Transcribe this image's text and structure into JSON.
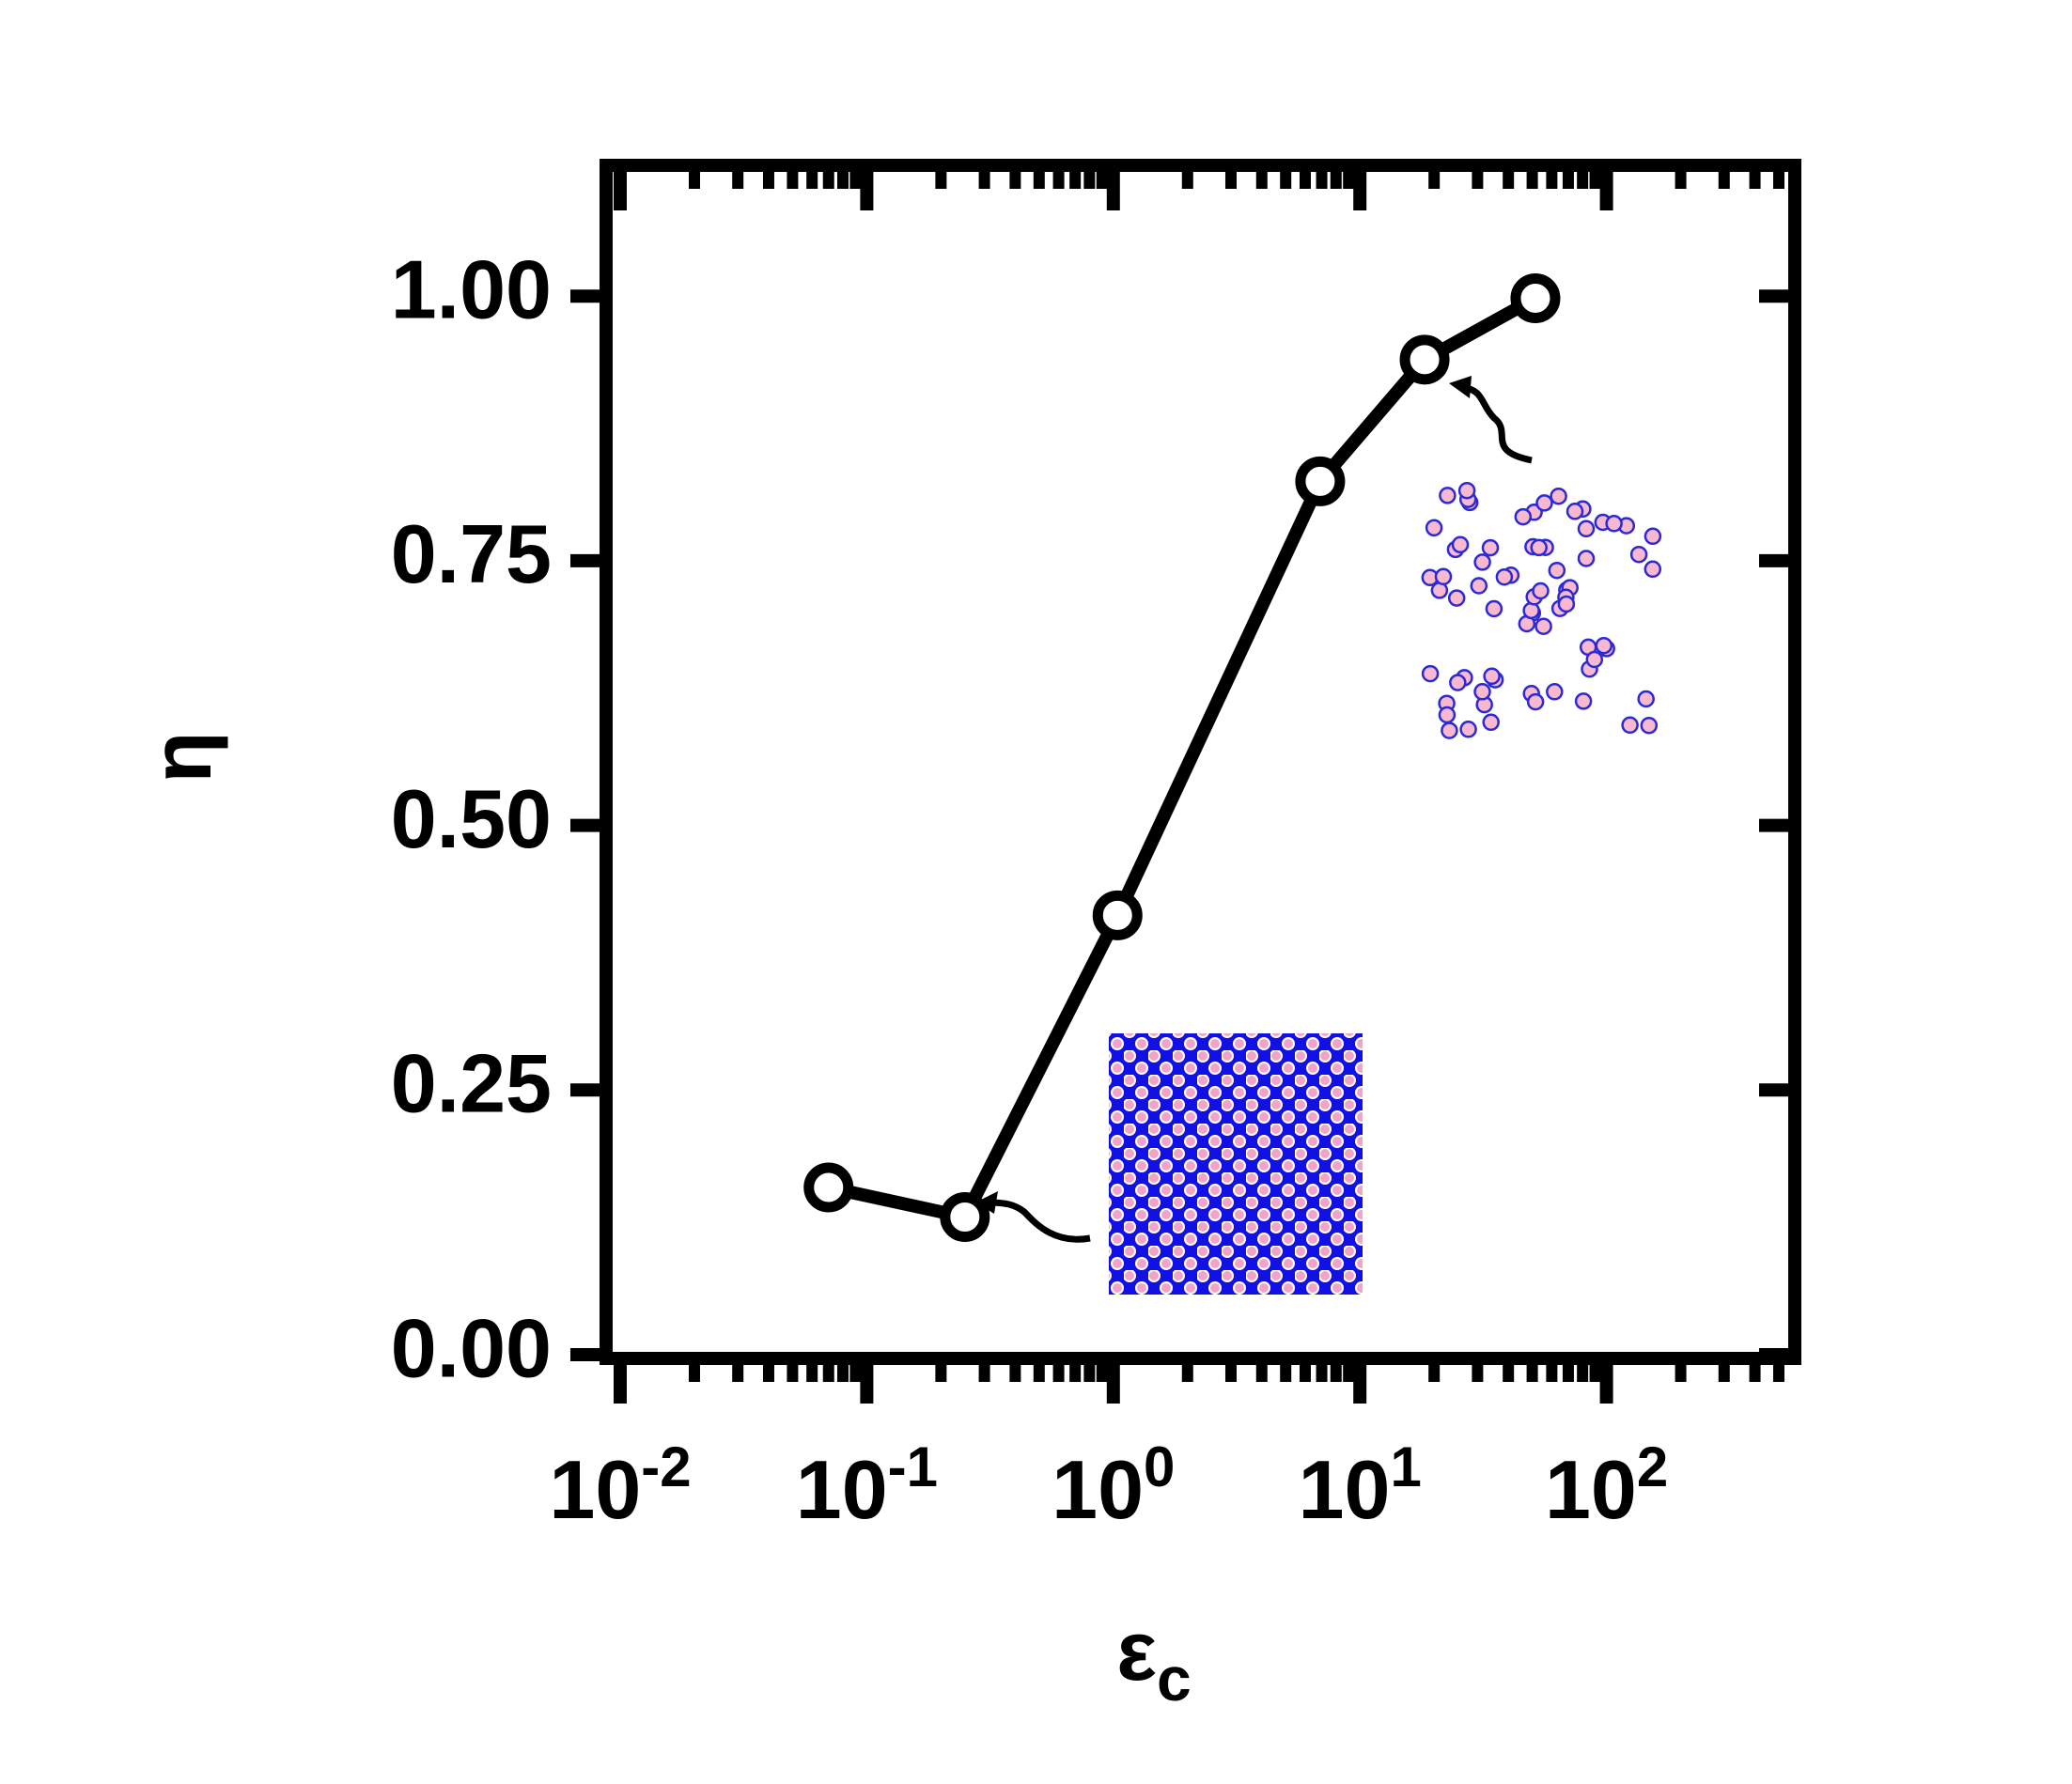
{
  "chart_data": {
    "type": "line",
    "title": "",
    "xlabel": "ε",
    "xlabel_sub": "c",
    "ylabel": "η",
    "x_scale": "log",
    "xlim": [
      0.01,
      500
    ],
    "ylim": [
      0,
      1.12
    ],
    "grid": false,
    "legend": "none",
    "x_ticks": [
      {
        "value": 0.01,
        "base": "10",
        "exp": "-2"
      },
      {
        "value": 0.1,
        "base": "10",
        "exp": "-1"
      },
      {
        "value": 1,
        "base": "10",
        "exp": "0"
      },
      {
        "value": 10,
        "base": "10",
        "exp": "1"
      },
      {
        "value": 100,
        "base": "10",
        "exp": "2"
      }
    ],
    "y_ticks": [
      {
        "value": 0,
        "label": "0.00"
      },
      {
        "value": 0.25,
        "label": "0.25"
      },
      {
        "value": 0.5,
        "label": "0.50"
      },
      {
        "value": 0.75,
        "label": "0.75"
      },
      {
        "value": 1.0,
        "label": "1.00"
      }
    ],
    "series": [
      {
        "x": [
          0.07,
          0.25,
          1.04,
          6.9,
          18.3,
          51.5
        ],
        "y": [
          0.158,
          0.13,
          0.415,
          0.825,
          0.94,
          0.998
        ],
        "marker": "open-circle",
        "line_color": "#000000"
      }
    ],
    "insets": [
      {
        "depicts": "dense packing of particles",
        "points_to_x": 0.25,
        "points_to_y": 0.13,
        "colors": {
          "fill": "#1111e6",
          "particle": "#f2a4c8"
        }
      },
      {
        "depicts": "sparse dispersed particles",
        "points_to_x": 18.3,
        "points_to_y": 0.94,
        "colors": {
          "fill": "#ffffff",
          "particle": "#f7b8d0",
          "outline": "#2a2ad6"
        }
      }
    ]
  }
}
